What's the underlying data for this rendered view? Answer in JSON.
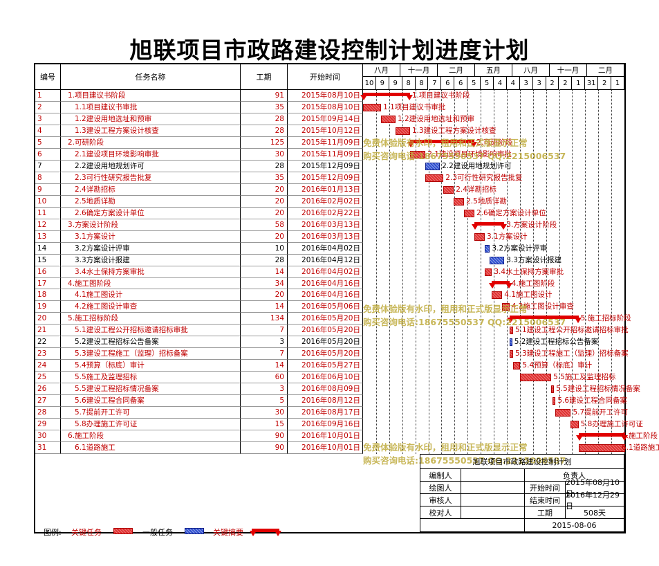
{
  "title": "旭联项目市政路建设控制计划进度计划",
  "headers": {
    "no": "编号",
    "name": "任务名称",
    "dur": "工期",
    "start": "开始时间"
  },
  "timescale": {
    "months": [
      "八月",
      "十一月",
      "二月",
      "五月",
      "八月",
      "十一月",
      "二月"
    ],
    "days": [
      "10",
      "9",
      "9",
      "8",
      "8",
      "7",
      "6",
      "6",
      "5",
      "5",
      "4",
      "4",
      "3",
      "3",
      "2",
      "2",
      "1",
      "31",
      "2",
      "1"
    ]
  },
  "tasks": [
    {
      "no": "1",
      "name": "1.项目建议书阶段",
      "dur": "91",
      "start": "2015年08月10日",
      "type": "summary",
      "crit": true,
      "indent": 0
    },
    {
      "no": "2",
      "name": "1.1项目建议书审批",
      "dur": "35",
      "start": "2015年08月10日",
      "type": "crit",
      "crit": true,
      "indent": 1
    },
    {
      "no": "3",
      "name": "1.2建设用地选址和预审",
      "dur": "28",
      "start": "2015年09月14日",
      "type": "crit",
      "crit": true,
      "indent": 1
    },
    {
      "no": "4",
      "name": "1.3建设工程方案设计核查",
      "dur": "28",
      "start": "2015年10月12日",
      "type": "crit",
      "crit": true,
      "indent": 1
    },
    {
      "no": "5",
      "name": "2.可研阶段",
      "dur": "125",
      "start": "2015年11月09日",
      "type": "summary",
      "crit": true,
      "indent": 0
    },
    {
      "no": "6",
      "name": "2.1建设项目环境影响审批",
      "dur": "30",
      "start": "2015年11月09日",
      "type": "crit",
      "crit": true,
      "indent": 1
    },
    {
      "no": "7",
      "name": "2.2建设用地规划许可",
      "dur": "28",
      "start": "2015年12月09日",
      "type": "norm",
      "crit": false,
      "indent": 1
    },
    {
      "no": "8",
      "name": "2.3可行性研究报告批复",
      "dur": "35",
      "start": "2015年12月09日",
      "type": "crit",
      "crit": true,
      "indent": 1
    },
    {
      "no": "9",
      "name": "2.4详勘招标",
      "dur": "20",
      "start": "2016年01月13日",
      "type": "crit",
      "crit": true,
      "indent": 1
    },
    {
      "no": "10",
      "name": "2.5地质详勘",
      "dur": "20",
      "start": "2016年02月02日",
      "type": "crit",
      "crit": true,
      "indent": 1
    },
    {
      "no": "11",
      "name": "2.6确定方案设计单位",
      "dur": "20",
      "start": "2016年02月22日",
      "type": "crit",
      "crit": true,
      "indent": 1
    },
    {
      "no": "12",
      "name": "3.方案设计阶段",
      "dur": "58",
      "start": "2016年03月13日",
      "type": "summary",
      "crit": true,
      "indent": 0
    },
    {
      "no": "13",
      "name": "3.1方案设计",
      "dur": "20",
      "start": "2016年03月13日",
      "type": "crit",
      "crit": true,
      "indent": 1
    },
    {
      "no": "14",
      "name": "3.2方案设计评审",
      "dur": "10",
      "start": "2016年04月02日",
      "type": "norm",
      "crit": false,
      "indent": 1
    },
    {
      "no": "15",
      "name": "3.3方案设计报建",
      "dur": "28",
      "start": "2016年04月12日",
      "type": "norm",
      "crit": false,
      "indent": 1
    },
    {
      "no": "16",
      "name": "3.4水土保持方案审批",
      "dur": "14",
      "start": "2016年04月02日",
      "type": "crit",
      "crit": true,
      "indent": 1
    },
    {
      "no": "17",
      "name": "4.施工图阶段",
      "dur": "34",
      "start": "2016年04月16日",
      "type": "summary",
      "crit": true,
      "indent": 0
    },
    {
      "no": "18",
      "name": "4.1施工图设计",
      "dur": "20",
      "start": "2016年04月16日",
      "type": "crit",
      "crit": true,
      "indent": 1
    },
    {
      "no": "19",
      "name": "4.2施工图设计审查",
      "dur": "14",
      "start": "2016年05月06日",
      "type": "crit",
      "crit": true,
      "indent": 1
    },
    {
      "no": "20",
      "name": "5.施工招标阶段",
      "dur": "134",
      "start": "2016年05月20日",
      "type": "summary",
      "crit": true,
      "indent": 0
    },
    {
      "no": "21",
      "name": "5.1建设工程公开招标邀请招标审批",
      "dur": "7",
      "start": "2016年05月20日",
      "type": "crit",
      "crit": true,
      "indent": 1
    },
    {
      "no": "22",
      "name": "5.2建设工程招标公告备案",
      "dur": "3",
      "start": "2016年05月20日",
      "type": "norm",
      "crit": false,
      "indent": 1
    },
    {
      "no": "23",
      "name": "5.3建设工程施工（监理）招标备案",
      "dur": "7",
      "start": "2016年05月20日",
      "type": "crit",
      "crit": true,
      "indent": 1
    },
    {
      "no": "24",
      "name": "5.4预算（标底）审计",
      "dur": "14",
      "start": "2016年05月27日",
      "type": "crit",
      "crit": true,
      "indent": 1
    },
    {
      "no": "25",
      "name": "5.5施工及监理招标",
      "dur": "60",
      "start": "2016年06月10日",
      "type": "crit",
      "crit": true,
      "indent": 1
    },
    {
      "no": "26",
      "name": "5.5建设工程招标情况备案",
      "dur": "3",
      "start": "2016年08月09日",
      "type": "crit",
      "crit": true,
      "indent": 1
    },
    {
      "no": "27",
      "name": "5.6建设工程合同备案",
      "dur": "5",
      "start": "2016年08月12日",
      "type": "crit",
      "crit": true,
      "indent": 1
    },
    {
      "no": "28",
      "name": "5.7提前开工许可",
      "dur": "30",
      "start": "2016年08月17日",
      "type": "crit",
      "crit": true,
      "indent": 1
    },
    {
      "no": "29",
      "name": "5.8办理施工许可证",
      "dur": "15",
      "start": "2016年09月16日",
      "type": "crit",
      "crit": true,
      "indent": 1
    },
    {
      "no": "30",
      "name": "6.施工阶段",
      "dur": "90",
      "start": "2016年10月01日",
      "type": "summary",
      "crit": true,
      "indent": 0
    },
    {
      "no": "31",
      "name": "6.1道路施工",
      "dur": "90",
      "start": "2016年10月01日",
      "type": "crit",
      "crit": true,
      "indent": 1
    }
  ],
  "bar_labels": [
    "1.项目建议书阶段",
    "1.1项目建议书审批",
    "1.2建设用地选址和预审",
    "1.3建设工程方案设计核查",
    "2.可研阶段",
    "2.1建设项目环境影响审批",
    "2.2建设用地规划许可",
    "2.3可行性研究报告批复",
    "2.4详勘招标",
    "2.5地质详勘",
    "2.6确定方案设计单位",
    "3.方案设计阶段",
    "3.1方案设计",
    "3.2方案设计评审",
    "3.3方案设计报建",
    "3.4水土保持方案审批",
    "4.施工图阶段",
    "4.1施工图设计",
    "4.2施工图设计审查",
    "5.施工招标阶段",
    "5.1建设工程公开招标邀请招标审批",
    "5.2建设工程招标公告备案",
    "5.3建设工程施工（监理）招标备案",
    "5.4预算（标底）审计",
    "5.5施工及监理招标",
    "5.5建设工程招标情况备案",
    "5.6建设工程合同备案",
    "5.7提前开工许可",
    "5.8办理施工许可证",
    "6.施工阶段",
    "6.1道路施工"
  ],
  "watermark": {
    "line1": "免费体验版有水印，租用和正式版显示正常",
    "line2": "购买咨询电话:18675550537 QQ:2215006537"
  },
  "legend": {
    "label": "图例:",
    "critical": "关键任务",
    "normal": "一般任务",
    "summary": "关键摘要"
  },
  "signoff": {
    "title": "旭联项目市政路建设控制计划",
    "compiler": "编制人",
    "owner": "负责人",
    "drawer": "绘图人",
    "start_label": "开始时间",
    "start_value": "2015年08月10日",
    "reviewer": "审核人",
    "end_label": "结束时间",
    "end_value": "2016年12月29日",
    "checker": "校对人",
    "dur_label": "工期",
    "dur_value": "508天",
    "date": "2015-08-06"
  },
  "colors": {
    "critical": "#e03030",
    "normal": "#3050d0",
    "critical_text": "#c00000"
  }
}
